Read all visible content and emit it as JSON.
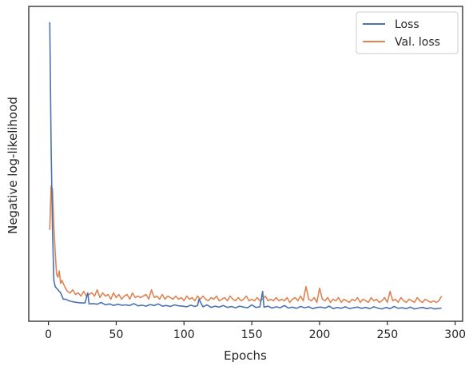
{
  "chart_data": {
    "type": "line",
    "title": "",
    "xlabel": "Epochs",
    "ylabel": "Negative log-likelihood",
    "xlim": [
      -14.5,
      305.5
    ],
    "ylim": [
      0,
      1
    ],
    "x_ticks": [
      "0",
      "50",
      "100",
      "150",
      "200",
      "250",
      "300"
    ],
    "x_tick_values": [
      0,
      50,
      100,
      150,
      200,
      250,
      300
    ],
    "y_ticks": [],
    "grid": false,
    "legend_position": "top-right",
    "colors": {
      "loss": "#4c72b0",
      "val_loss": "#dd8452",
      "frame": "#262626"
    },
    "series": [
      {
        "name": "Loss",
        "color": "#4c72b0",
        "x": [
          1,
          2,
          3,
          4,
          5,
          7,
          9,
          11,
          13,
          15,
          18,
          21,
          24,
          27,
          29,
          30,
          33,
          36,
          39,
          42,
          45,
          48,
          51,
          54,
          57,
          60,
          63,
          66,
          69,
          72,
          75,
          78,
          81,
          84,
          87,
          90,
          93,
          96,
          99,
          102,
          105,
          108,
          110,
          111,
          114,
          117,
          120,
          123,
          126,
          129,
          132,
          135,
          138,
          141,
          144,
          147,
          150,
          153,
          156,
          158,
          159,
          162,
          165,
          168,
          171,
          174,
          177,
          180,
          183,
          186,
          189,
          192,
          195,
          198,
          201,
          204,
          207,
          210,
          213,
          216,
          219,
          222,
          225,
          228,
          231,
          234,
          237,
          240,
          243,
          246,
          249,
          252,
          255,
          258,
          261,
          264,
          267,
          270,
          273,
          276,
          279,
          282,
          285,
          288,
          290
        ],
        "values": [
          0.95,
          0.55,
          0.29,
          0.13,
          0.11,
          0.1,
          0.09,
          0.07,
          0.07,
          0.065,
          0.062,
          0.06,
          0.058,
          0.058,
          0.09,
          0.055,
          0.056,
          0.054,
          0.06,
          0.052,
          0.055,
          0.05,
          0.054,
          0.051,
          0.052,
          0.05,
          0.056,
          0.049,
          0.051,
          0.048,
          0.053,
          0.05,
          0.055,
          0.048,
          0.05,
          0.047,
          0.052,
          0.049,
          0.048,
          0.046,
          0.051,
          0.047,
          0.05,
          0.07,
          0.046,
          0.052,
          0.044,
          0.048,
          0.045,
          0.05,
          0.044,
          0.047,
          0.043,
          0.048,
          0.045,
          0.043,
          0.052,
          0.044,
          0.046,
          0.095,
          0.045,
          0.048,
          0.042,
          0.046,
          0.043,
          0.05,
          0.042,
          0.045,
          0.041,
          0.047,
          0.043,
          0.046,
          0.04,
          0.044,
          0.045,
          0.042,
          0.048,
          0.04,
          0.044,
          0.041,
          0.046,
          0.04,
          0.043,
          0.045,
          0.041,
          0.044,
          0.04,
          0.046,
          0.042,
          0.039,
          0.044,
          0.04,
          0.047,
          0.041,
          0.043,
          0.04,
          0.045,
          0.039,
          0.042,
          0.044,
          0.04,
          0.043,
          0.039,
          0.041,
          0.042
        ]
      },
      {
        "name": "Val. loss",
        "color": "#dd8452",
        "x": [
          1,
          2,
          3,
          4,
          5,
          6,
          7,
          8,
          9,
          10,
          12,
          14,
          16,
          18,
          20,
          22,
          24,
          26,
          28,
          30,
          32,
          34,
          36,
          38,
          40,
          42,
          44,
          46,
          48,
          50,
          52,
          54,
          56,
          58,
          60,
          62,
          64,
          66,
          68,
          70,
          72,
          74,
          76,
          78,
          80,
          82,
          84,
          86,
          88,
          90,
          92,
          94,
          96,
          98,
          100,
          102,
          104,
          106,
          108,
          110,
          112,
          114,
          116,
          118,
          120,
          122,
          124,
          126,
          128,
          130,
          132,
          134,
          136,
          138,
          140,
          142,
          144,
          146,
          148,
          150,
          152,
          154,
          156,
          158,
          160,
          162,
          164,
          166,
          168,
          170,
          172,
          174,
          176,
          178,
          180,
          182,
          184,
          186,
          188,
          190,
          192,
          194,
          196,
          198,
          200,
          202,
          204,
          206,
          208,
          210,
          212,
          214,
          216,
          218,
          220,
          222,
          224,
          226,
          228,
          230,
          232,
          234,
          236,
          238,
          240,
          242,
          244,
          246,
          248,
          250,
          252,
          254,
          256,
          258,
          260,
          262,
          264,
          266,
          268,
          270,
          272,
          274,
          276,
          278,
          280,
          282,
          284,
          286,
          288,
          290
        ],
        "values": [
          0.29,
          0.43,
          0.42,
          0.3,
          0.22,
          0.15,
          0.14,
          0.16,
          0.12,
          0.13,
          0.11,
          0.095,
          0.09,
          0.1,
          0.085,
          0.09,
          0.08,
          0.095,
          0.08,
          0.085,
          0.09,
          0.08,
          0.1,
          0.075,
          0.09,
          0.08,
          0.085,
          0.07,
          0.09,
          0.075,
          0.085,
          0.07,
          0.08,
          0.085,
          0.07,
          0.09,
          0.075,
          0.08,
          0.075,
          0.08,
          0.085,
          0.07,
          0.1,
          0.075,
          0.08,
          0.07,
          0.085,
          0.07,
          0.08,
          0.075,
          0.07,
          0.08,
          0.07,
          0.075,
          0.065,
          0.08,
          0.07,
          0.075,
          0.065,
          0.08,
          0.07,
          0.08,
          0.07,
          0.065,
          0.075,
          0.07,
          0.08,
          0.065,
          0.07,
          0.075,
          0.065,
          0.08,
          0.07,
          0.065,
          0.075,
          0.065,
          0.07,
          0.08,
          0.065,
          0.07,
          0.065,
          0.075,
          0.065,
          0.07,
          0.08,
          0.065,
          0.07,
          0.065,
          0.075,
          0.065,
          0.07,
          0.065,
          0.075,
          0.06,
          0.07,
          0.075,
          0.065,
          0.08,
          0.065,
          0.11,
          0.07,
          0.065,
          0.075,
          0.06,
          0.105,
          0.07,
          0.065,
          0.075,
          0.06,
          0.07,
          0.065,
          0.075,
          0.06,
          0.07,
          0.065,
          0.06,
          0.07,
          0.065,
          0.075,
          0.06,
          0.07,
          0.065,
          0.06,
          0.075,
          0.065,
          0.07,
          0.06,
          0.065,
          0.075,
          0.06,
          0.095,
          0.065,
          0.07,
          0.06,
          0.075,
          0.065,
          0.06,
          0.07,
          0.065,
          0.06,
          0.075,
          0.065,
          0.06,
          0.07,
          0.065,
          0.06,
          0.065,
          0.06,
          0.065,
          0.08
        ]
      }
    ]
  }
}
